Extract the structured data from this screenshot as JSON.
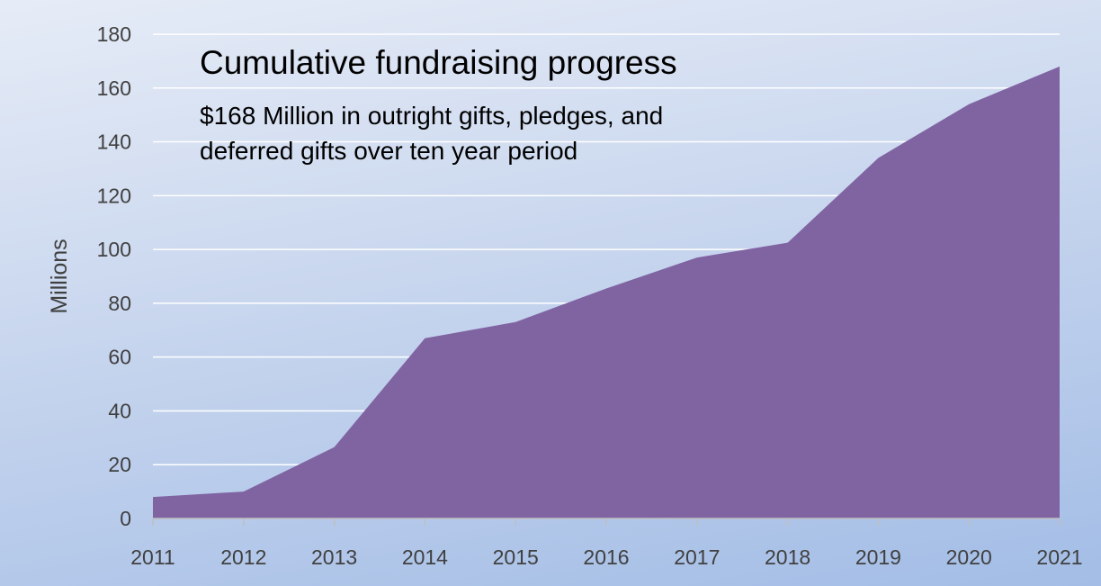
{
  "chart_data": {
    "type": "area",
    "title": "Cumulative fundraising progress",
    "subtitle_lines": [
      "$168 Million in outright gifts, pledges, and",
      "deferred gifts over ten year period"
    ],
    "xlabel": "",
    "ylabel": "Millions",
    "categories": [
      "2011",
      "2012",
      "2013",
      "2014",
      "2015",
      "2016",
      "2017",
      "2018",
      "2019",
      "2020",
      "2021"
    ],
    "values": [
      8,
      10,
      26.5,
      67,
      73,
      85.5,
      97,
      102.5,
      134,
      154,
      168
    ],
    "ylim": [
      0,
      180
    ],
    "yticks": [
      "0",
      "20",
      "40",
      "60",
      "80",
      "100",
      "120",
      "140",
      "160",
      "180"
    ],
    "grid": true,
    "legend": "none",
    "colors": {
      "area": "#8064a2",
      "grid": "#ffffff",
      "axis": "#bfbfbf"
    }
  }
}
